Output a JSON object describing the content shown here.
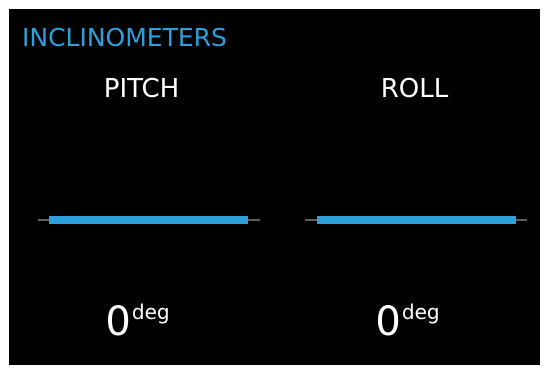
{
  "header": {
    "title": "INCLINOMETERS",
    "title_color": "#2e9fd8"
  },
  "gauges": [
    {
      "id": "pitch",
      "label": "PITCH",
      "value": "0",
      "unit": "deg",
      "angle_deg": 0
    },
    {
      "id": "roll",
      "label": "ROLL",
      "value": "0",
      "unit": "deg",
      "angle_deg": 0
    }
  ],
  "colors": {
    "background": "#000000",
    "text": "#ffffff",
    "bar": "#2e9fd8",
    "reference_line": "#bbbbbb"
  }
}
